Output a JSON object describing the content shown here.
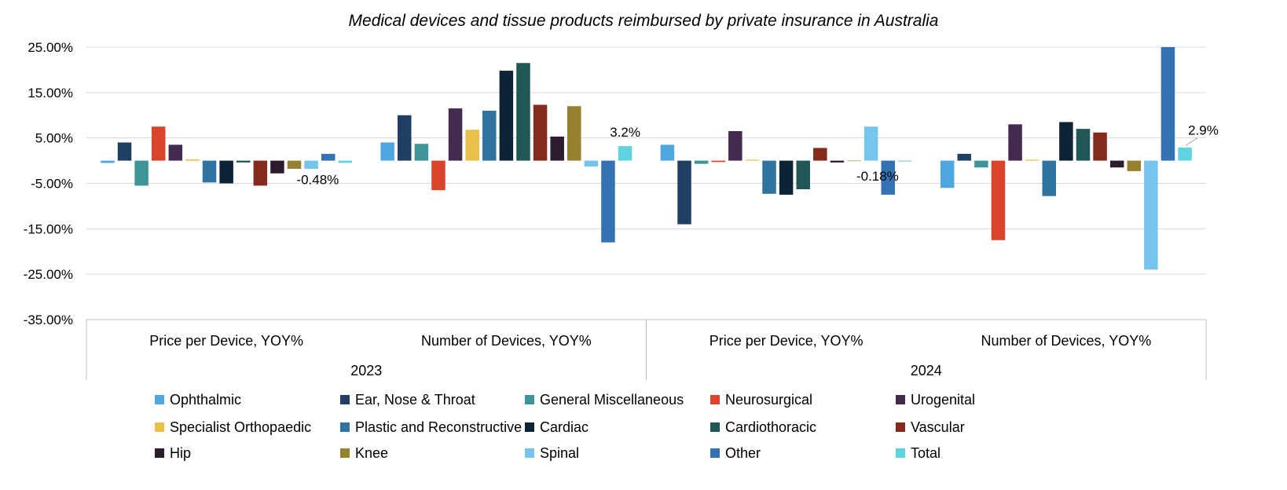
{
  "chart_data": {
    "type": "bar",
    "title": "Medical devices and tissue products reimbursed by private insurance in Australia",
    "ylim": [
      -35,
      25
    ],
    "yticks": [
      25,
      15,
      5,
      -5,
      -15,
      -25,
      -35
    ],
    "ytick_labels": [
      "25.00%",
      "15.00%",
      "5.00%",
      "-5.00%",
      "-15.00%",
      "-25.00%",
      "-35.00%"
    ],
    "grid": true,
    "legend_position": "bottom",
    "groups": [
      {
        "label": "Price per Device, YOY%",
        "year": "2023"
      },
      {
        "label": "Number of Devices, YOY%",
        "year": "2023"
      },
      {
        "label": "Price per Device, YOY%",
        "year": "2024"
      },
      {
        "label": "Number of Devices, YOY%",
        "year": "2024"
      }
    ],
    "years": [
      "2023",
      "2024"
    ],
    "series": [
      {
        "name": "Ophthalmic",
        "color": "#4fa7e0",
        "values": [
          -0.5,
          4.0,
          3.5,
          -6.0
        ]
      },
      {
        "name": "Ear, Nose & Throat",
        "color": "#1f3f63",
        "values": [
          4.0,
          10.0,
          -14.0,
          1.5
        ]
      },
      {
        "name": "General Miscellaneous",
        "color": "#3f9497",
        "values": [
          -5.5,
          3.7,
          -0.7,
          -1.5
        ]
      },
      {
        "name": "Neurosurgical",
        "color": "#d9442a",
        "values": [
          7.5,
          -6.5,
          -0.3,
          -17.5
        ]
      },
      {
        "name": "Urogenital",
        "color": "#432a4e",
        "values": [
          3.5,
          11.5,
          6.5,
          8.0
        ]
      },
      {
        "name": "Specialist Orthopaedic",
        "color": "#e9c04a",
        "values": [
          0.3,
          6.8,
          0.2,
          0.2
        ]
      },
      {
        "name": "Plastic and Reconstructive",
        "color": "#2f74a0",
        "values": [
          -4.8,
          11.0,
          -7.3,
          -7.8
        ]
      },
      {
        "name": "Cardiac",
        "color": "#0d2437",
        "values": [
          -5.0,
          19.8,
          -7.5,
          8.5
        ]
      },
      {
        "name": "Cardiothoracic",
        "color": "#205757",
        "values": [
          -0.4,
          21.5,
          -6.3,
          7.0
        ]
      },
      {
        "name": "Vascular",
        "color": "#842b1d",
        "values": [
          -5.5,
          12.3,
          2.8,
          6.2
        ]
      },
      {
        "name": "Hip",
        "color": "#2b1c2e",
        "values": [
          -2.8,
          5.3,
          -0.4,
          -1.5
        ]
      },
      {
        "name": "Knee",
        "color": "#978030",
        "values": [
          -1.8,
          12.0,
          0.0,
          -2.3
        ]
      },
      {
        "name": "Spinal",
        "color": "#77c4ee",
        "values": [
          -1.8,
          -1.3,
          7.5,
          -24.0
        ]
      },
      {
        "name": "Other",
        "color": "#3373b3",
        "values": [
          1.5,
          -18.0,
          -7.5,
          25.0
        ]
      },
      {
        "name": "Total",
        "color": "#5fd3de",
        "values": [
          -0.48,
          3.2,
          -0.18,
          2.9
        ]
      }
    ],
    "annotations": [
      "-0.48%",
      "3.2%",
      "-0.18%",
      "2.9%"
    ]
  }
}
